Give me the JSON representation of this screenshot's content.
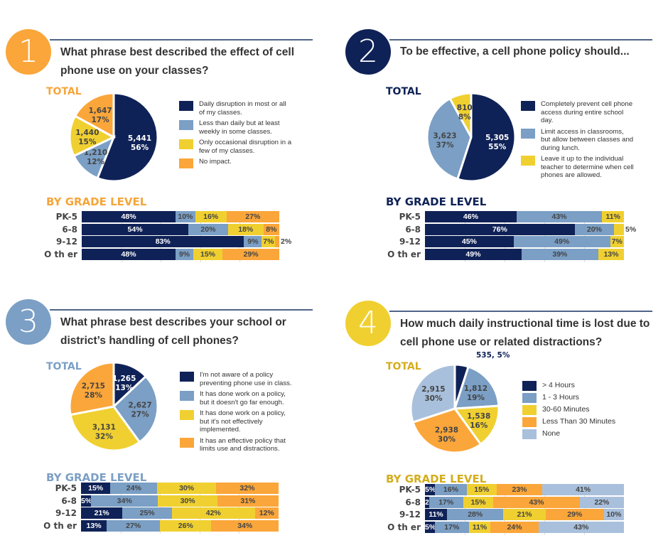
{
  "colors": {
    "navy": "#0f2257",
    "blue": "#7b9fc5",
    "yellow": "#f0d030",
    "orange": "#fba63a",
    "pale": "#a9c0dc"
  },
  "grades": [
    "PK-5",
    "6-8",
    "9-12",
    "O th er"
  ],
  "total_label": "TOTAL",
  "grade_label": "BY GRADE LEVEL",
  "chart_data": [
    {
      "number": "1",
      "accent": "#fba63a",
      "heading_color": "#f5a53a",
      "title": "What phrase best described the effect of cell phone use on your classes?",
      "type": "pie+stacked-bar",
      "legend": [
        "Daily disruption in most or all of my classes.",
        "Less than daily but at least weekly in some classes.",
        "Only occasional disruption in a few of my classes.",
        "No impact."
      ],
      "series_colors": [
        "#0f2257",
        "#7b9fc5",
        "#f0d030",
        "#fba63a"
      ],
      "pie": [
        {
          "count": "5,441",
          "pct": 56
        },
        {
          "count": "1,210",
          "pct": 12
        },
        {
          "count": "1,440",
          "pct": 15
        },
        {
          "count": "1,647",
          "pct": 17
        }
      ],
      "bars": [
        [
          48,
          10,
          16,
          27
        ],
        [
          54,
          20,
          18,
          8
        ],
        [
          83,
          9,
          7,
          2
        ],
        [
          48,
          9,
          15,
          29
        ]
      ]
    },
    {
      "number": "2",
      "accent": "#0f2257",
      "heading_color": "#0f2257",
      "title": "To be effective, a cell phone policy should...",
      "type": "pie+stacked-bar",
      "legend": [
        "Completely prevent cell phone access during entire school day.",
        "Limit access in classrooms, but allow between classes and during lunch.",
        "Leave it up to the individual teacher to determine when cell phones are allowed."
      ],
      "series_colors": [
        "#0f2257",
        "#7b9fc5",
        "#f0d030"
      ],
      "pie": [
        {
          "count": "5,305",
          "pct": 55
        },
        {
          "count": "3,623",
          "pct": 37
        },
        {
          "count": "810",
          "pct": 8
        }
      ],
      "bars": [
        [
          46,
          43,
          11
        ],
        [
          76,
          20,
          5
        ],
        [
          45,
          49,
          7
        ],
        [
          49,
          39,
          13
        ]
      ]
    },
    {
      "number": "3",
      "accent": "#7b9fc5",
      "heading_color": "#7b9fc5",
      "title": "What phrase best describes your school or district’s handling of cell phones?",
      "type": "pie+stacked-bar",
      "legend": [
        "I'm not aware of a policy preventing phone use in class.",
        "It has done work on a policy, but it doesn't go far enough.",
        "It has done work on a policy, but it's not effectively implemented.",
        "It has an effective policy that limits use and distractions."
      ],
      "series_colors": [
        "#0f2257",
        "#7b9fc5",
        "#f0d030",
        "#fba63a"
      ],
      "pie": [
        {
          "count": "1,265",
          "pct": 13
        },
        {
          "count": "2,627",
          "pct": 27
        },
        {
          "count": "3,131",
          "pct": 32
        },
        {
          "count": "2,715",
          "pct": 28
        }
      ],
      "bars": [
        [
          15,
          24,
          30,
          32
        ],
        [
          5,
          34,
          30,
          31
        ],
        [
          21,
          25,
          42,
          12
        ],
        [
          13,
          27,
          26,
          34
        ]
      ]
    },
    {
      "number": "4",
      "accent": "#f0d030",
      "heading_color": "#d4ad1c",
      "title": "How much daily instructional time is lost due to cell phone use or related distractions?",
      "type": "pie+stacked-bar",
      "legend": [
        "> 4 Hours",
        "1 - 3 Hours",
        "30-60 Minutes",
        "Less Than 30 Minutes",
        "None"
      ],
      "series_colors": [
        "#0f2257",
        "#7b9fc5",
        "#f0d030",
        "#fba63a",
        "#a9c0dc"
      ],
      "pie": [
        {
          "count": "535",
          "pct": 5,
          "label": "535, 5%"
        },
        {
          "count": "1,812",
          "pct": 19
        },
        {
          "count": "1,538",
          "pct": 16
        },
        {
          "count": "2,938",
          "pct": 30
        },
        {
          "count": "2,915",
          "pct": 30
        }
      ],
      "bars": [
        [
          5,
          16,
          15,
          23,
          41
        ],
        [
          2,
          17,
          15,
          43,
          22
        ],
        [
          11,
          28,
          21,
          29,
          10
        ],
        [
          5,
          17,
          11,
          24,
          43
        ]
      ]
    }
  ]
}
